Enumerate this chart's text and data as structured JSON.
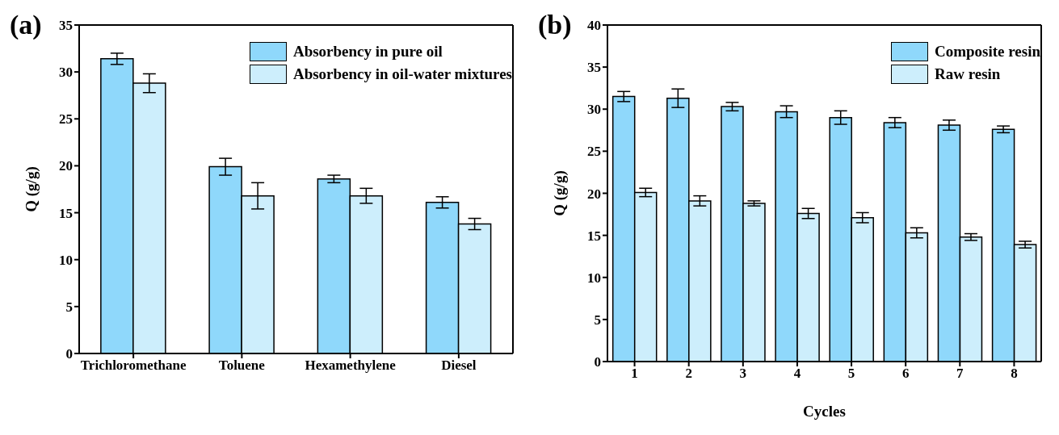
{
  "chart_data": [
    {
      "type": "bar",
      "title": "(a)",
      "ylabel": "Q (g/g)",
      "categories": [
        "Trichloromethane",
        "Toluene",
        "Hexamethylene",
        "Diesel"
      ],
      "ylim": [
        0,
        35
      ],
      "yticks": [
        0,
        5,
        10,
        15,
        20,
        25,
        30,
        35
      ],
      "legend": "top right",
      "series": [
        {
          "name": "Absorbency in pure oil",
          "color": "#8fd8fb",
          "values": [
            31.4,
            19.9,
            18.6,
            16.1
          ],
          "errors": [
            0.6,
            0.9,
            0.4,
            0.6
          ]
        },
        {
          "name": "Absorbency in oil-water mixtures",
          "color": "#cdeefc",
          "values": [
            28.8,
            16.8,
            16.8,
            13.8
          ],
          "errors": [
            1.0,
            1.4,
            0.8,
            0.6
          ]
        }
      ]
    },
    {
      "type": "bar",
      "title": "(b)",
      "xlabel": "Cycles",
      "ylabel": "Q (g/g)",
      "categories": [
        "1",
        "2",
        "3",
        "4",
        "5",
        "6",
        "7",
        "8"
      ],
      "ylim": [
        0,
        40
      ],
      "yticks": [
        0,
        5,
        10,
        15,
        20,
        25,
        30,
        35,
        40
      ],
      "legend": "top right",
      "series": [
        {
          "name": "Composite resin",
          "color": "#8fd8fb",
          "values": [
            31.5,
            31.3,
            30.3,
            29.7,
            29.0,
            28.4,
            28.1,
            27.6
          ],
          "errors": [
            0.6,
            1.1,
            0.5,
            0.7,
            0.8,
            0.6,
            0.6,
            0.4
          ]
        },
        {
          "name": "Raw resin",
          "color": "#cdeefc",
          "values": [
            20.1,
            19.1,
            18.8,
            17.6,
            17.1,
            15.3,
            14.8,
            13.9
          ],
          "errors": [
            0.5,
            0.6,
            0.3,
            0.6,
            0.6,
            0.6,
            0.4,
            0.4
          ]
        }
      ]
    }
  ]
}
